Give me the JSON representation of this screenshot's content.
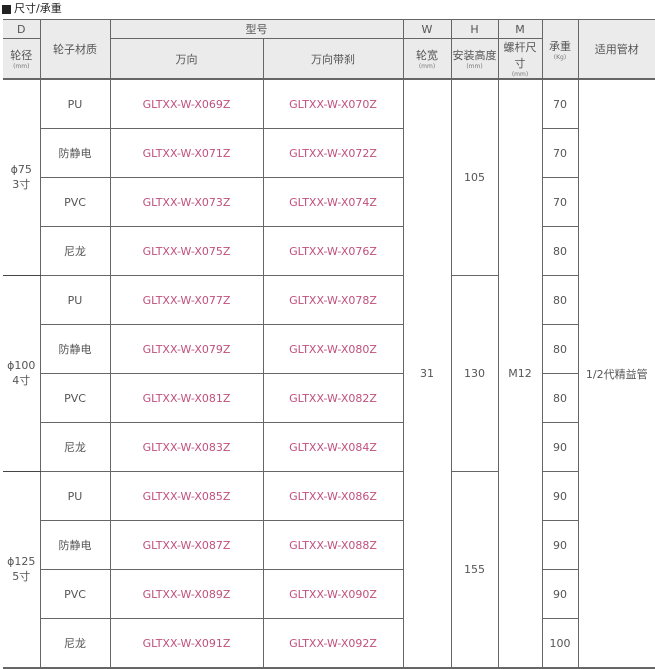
{
  "section_title": "尺寸/承重",
  "header": {
    "D": "D",
    "diameter": "轮径",
    "material": "轮子材质",
    "model": "型号",
    "swivel": "万向",
    "swivel_brake": "万向带刹",
    "W": "W",
    "width": "轮宽",
    "H": "H",
    "mount_height": "安装高度",
    "M": "M",
    "stem": "螺杆尺寸",
    "load": "承重",
    "load_unit": "(Kg)",
    "pipe": "适用管材",
    "mm": "(mm)"
  },
  "groups": [
    {
      "diameter": "ϕ75",
      "inch": "3寸",
      "height": "105",
      "rows": [
        {
          "material": "PU",
          "swivel": "GLTXX-W-X069Z",
          "brake": "GLTXX-W-X070Z",
          "load": "70"
        },
        {
          "material": "防静电",
          "swivel": "GLTXX-W-X071Z",
          "brake": "GLTXX-W-X072Z",
          "load": "70"
        },
        {
          "material": "PVC",
          "swivel": "GLTXX-W-X073Z",
          "brake": "GLTXX-W-X074Z",
          "load": "70"
        },
        {
          "material": "尼龙",
          "swivel": "GLTXX-W-X075Z",
          "brake": "GLTXX-W-X076Z",
          "load": "80"
        }
      ]
    },
    {
      "diameter": "ϕ100",
      "inch": "4寸",
      "height": "130",
      "rows": [
        {
          "material": "PU",
          "swivel": "GLTXX-W-X077Z",
          "brake": "GLTXX-W-X078Z",
          "load": "80"
        },
        {
          "material": "防静电",
          "swivel": "GLTXX-W-X079Z",
          "brake": "GLTXX-W-X080Z",
          "load": "80"
        },
        {
          "material": "PVC",
          "swivel": "GLTXX-W-X081Z",
          "brake": "GLTXX-W-X082Z",
          "load": "80"
        },
        {
          "material": "尼龙",
          "swivel": "GLTXX-W-X083Z",
          "brake": "GLTXX-W-X084Z",
          "load": "90"
        }
      ]
    },
    {
      "diameter": "ϕ125",
      "inch": "5寸",
      "height": "155",
      "rows": [
        {
          "material": "PU",
          "swivel": "GLTXX-W-X085Z",
          "brake": "GLTXX-W-X086Z",
          "load": "90"
        },
        {
          "material": "防静电",
          "swivel": "GLTXX-W-X087Z",
          "brake": "GLTXX-W-X088Z",
          "load": "90"
        },
        {
          "material": "PVC",
          "swivel": "GLTXX-W-X089Z",
          "brake": "GLTXX-W-X090Z",
          "load": "90"
        },
        {
          "material": "尼龙",
          "swivel": "GLTXX-W-X091Z",
          "brake": "GLTXX-W-X092Z",
          "load": "100"
        }
      ]
    }
  ],
  "shared": {
    "width": "31",
    "stem": "M12",
    "pipe": "1/2代精益管"
  }
}
